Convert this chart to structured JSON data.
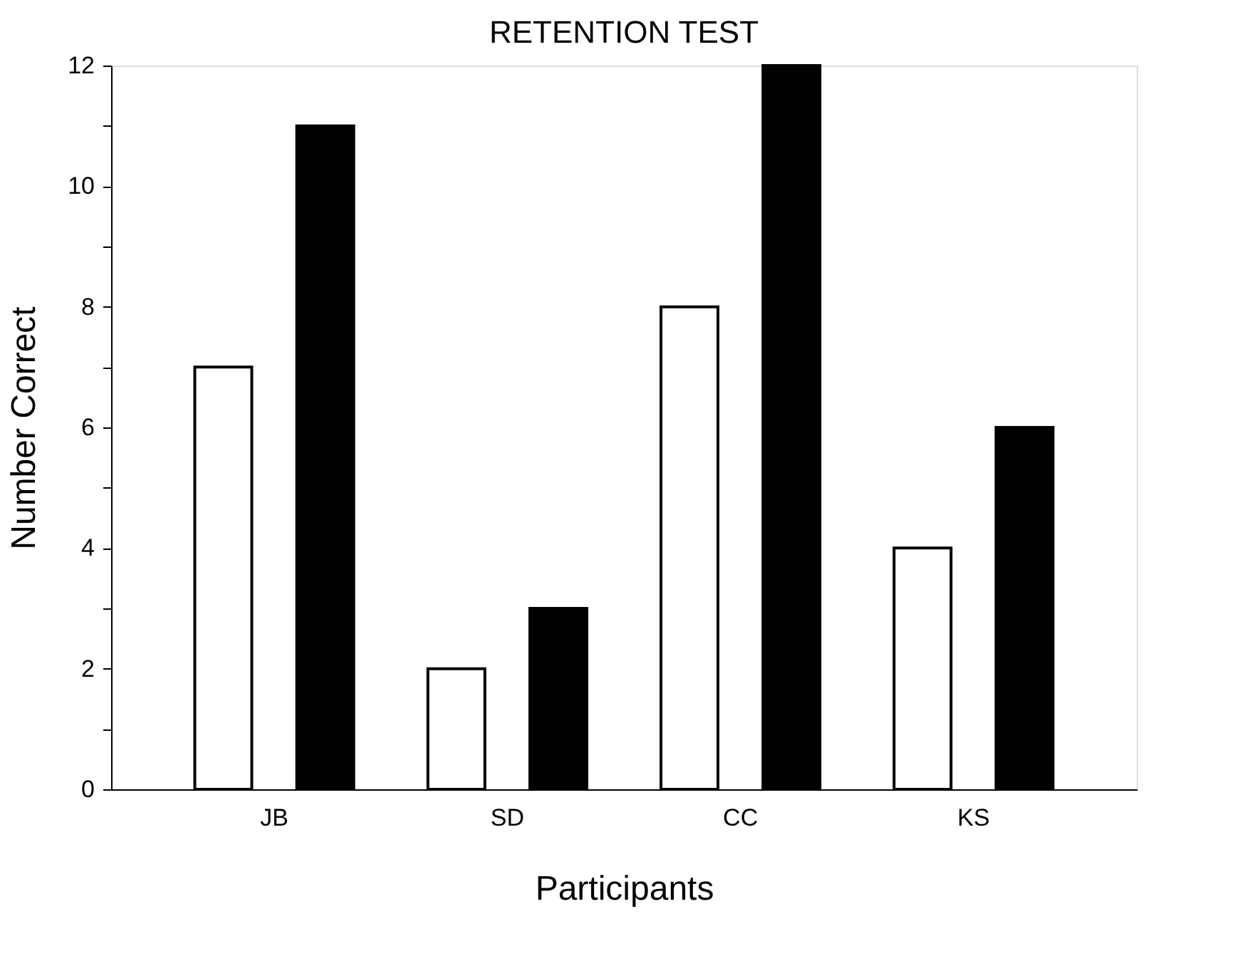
{
  "chart_data": {
    "type": "bar",
    "title": "RETENTION TEST",
    "xlabel": "Participants",
    "ylabel": "Number Correct",
    "categories": [
      "JB",
      "SD",
      "CC",
      "KS"
    ],
    "series": [
      {
        "color": "#ffffff",
        "values": [
          7,
          2,
          8,
          4
        ]
      },
      {
        "color": "#000000",
        "values": [
          11,
          3,
          12,
          6
        ]
      }
    ],
    "ylim": [
      0,
      12
    ],
    "yticks": [
      0,
      {
        "value": 1,
        "label": null
      },
      2,
      {
        "value": 3,
        "label": null
      },
      4,
      {
        "value": 5,
        "label": null
      },
      6,
      {
        "value": 7,
        "label": null
      },
      8,
      {
        "value": 9,
        "label": null
      },
      10,
      {
        "value": 11,
        "label": null
      },
      12
    ],
    "grid": false,
    "legend": false
  }
}
